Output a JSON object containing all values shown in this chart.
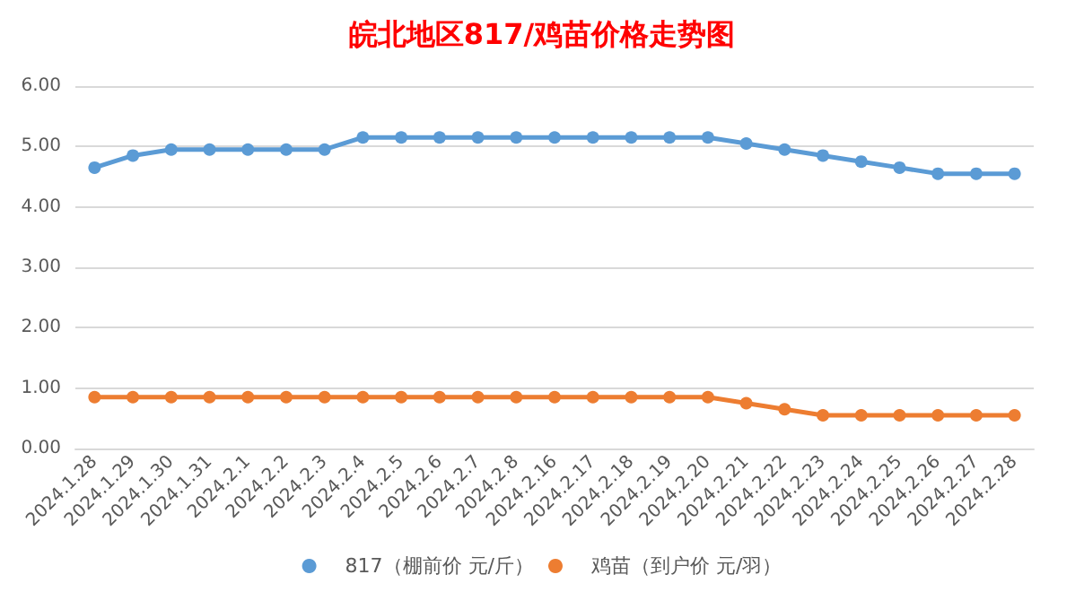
{
  "chart_data": {
    "type": "line",
    "title": "皖北地区817/鸡苗价格走势图",
    "categories": [
      "2024.1.28",
      "2024.1.29",
      "2024.1.30",
      "2024.1.31",
      "2024.2.1",
      "2024.2.2",
      "2024.2.3",
      "2024.2.4",
      "2024.2.5",
      "2024.2.6",
      "2024.2.7",
      "2024.2.8",
      "2024.2.16",
      "2024.2.17",
      "2024.2.18",
      "2024.2.19",
      "2024.2.20",
      "2024.2.21",
      "2024.2.22",
      "2024.2.23",
      "2024.2.24",
      "2024.2.25",
      "2024.2.26",
      "2024.2.27",
      "2024.2.28"
    ],
    "series": [
      {
        "name": "817（棚前价 元/斤）",
        "color": "#5b9bd5",
        "values": [
          4.65,
          4.85,
          4.95,
          4.95,
          4.95,
          4.95,
          4.95,
          5.15,
          5.15,
          5.15,
          5.15,
          5.15,
          5.15,
          5.15,
          5.15,
          5.15,
          5.15,
          5.05,
          4.95,
          4.85,
          4.75,
          4.65,
          4.55,
          4.55,
          4.55
        ]
      },
      {
        "name": "鸡苗（到户价 元/羽）",
        "color": "#ed7d31",
        "values": [
          0.85,
          0.85,
          0.85,
          0.85,
          0.85,
          0.85,
          0.85,
          0.85,
          0.85,
          0.85,
          0.85,
          0.85,
          0.85,
          0.85,
          0.85,
          0.85,
          0.85,
          0.75,
          0.65,
          0.55,
          0.55,
          0.55,
          0.55,
          0.55,
          0.55
        ]
      }
    ],
    "ylim": [
      0,
      6
    ],
    "yticks": [
      {
        "value": 0,
        "label": "0.00"
      },
      {
        "value": 1,
        "label": "1.00"
      },
      {
        "value": 2,
        "label": "2.00"
      },
      {
        "value": 3,
        "label": "3.00"
      },
      {
        "value": 4,
        "label": "4.00"
      },
      {
        "value": 5,
        "label": "5.00"
      },
      {
        "value": 6,
        "label": "6.00"
      }
    ],
    "grid": "y",
    "legend": "bottom",
    "marker": "circle",
    "line_style": "solid"
  }
}
